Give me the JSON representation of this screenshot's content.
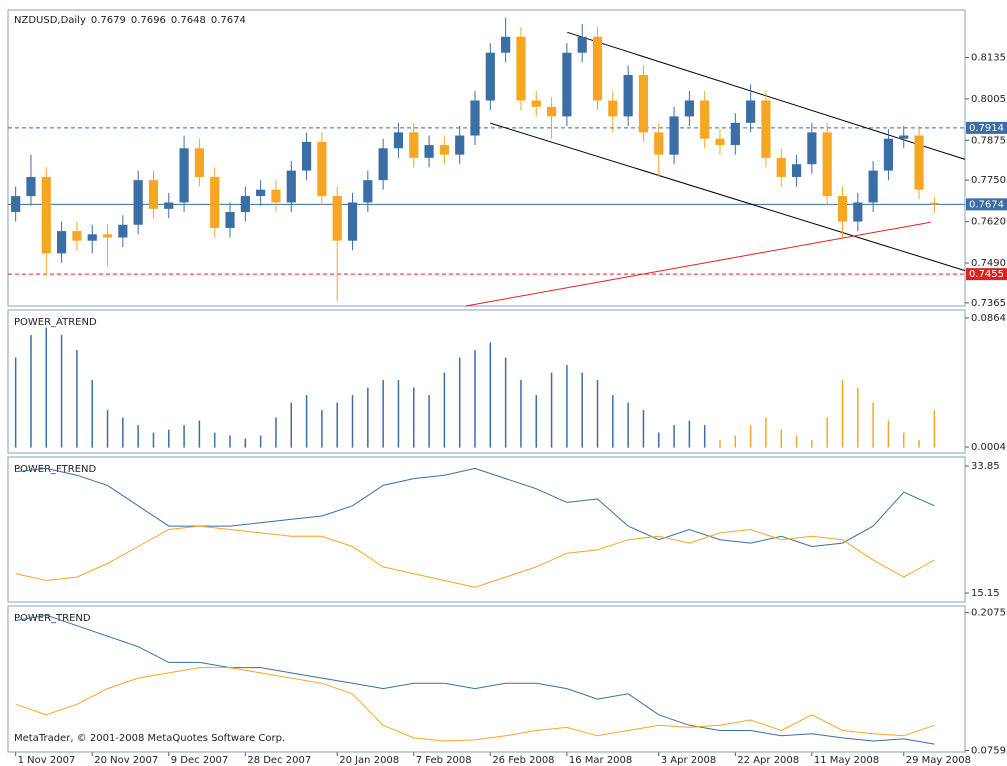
{
  "chart_data": [
    {
      "type": "candlestick",
      "title": "NZDUSD,Daily",
      "up_color": "#3a6ea5",
      "down_color": "#f5a623",
      "xlim": [
        -0.5,
        62
      ],
      "xticks": [
        {
          "value": 0,
          "label": "1 Nov 2007"
        },
        {
          "value": 5,
          "label": "20 Nov 2007"
        },
        {
          "value": 10,
          "label": "9 Dec 2007"
        },
        {
          "value": 15,
          "label": "28 Dec 2007"
        },
        {
          "value": 21,
          "label": "20 Jan 2008"
        },
        {
          "value": 26,
          "label": "7 Feb 2008"
        },
        {
          "value": 31,
          "label": "26 Feb 2008"
        },
        {
          "value": 36,
          "label": "16 Mar 2008"
        },
        {
          "value": 42,
          "label": "3 Apr 2008"
        },
        {
          "value": 47,
          "label": "22 Apr 2008"
        },
        {
          "value": 52,
          "label": "11 May 2008"
        },
        {
          "value": 58,
          "label": "29 May 2008"
        }
      ],
      "ylim": [
        0.7355,
        0.8284
      ],
      "yticks": [
        0.8135,
        0.8005,
        0.7875,
        {
          "value": 0.775,
          "label": "0.7750"
        },
        {
          "value": 0.762,
          "label": "0.7620"
        },
        {
          "value": 0.749,
          "label": "0.7490"
        },
        0.7365
      ],
      "open": [
        0.765,
        0.77,
        0.776,
        0.752,
        0.759,
        0.756,
        0.758,
        0.757,
        0.761,
        0.775,
        0.766,
        0.768,
        0.785,
        0.776,
        0.76,
        0.765,
        0.77,
        0.772,
        0.768,
        0.778,
        0.787,
        0.77,
        0.756,
        0.768,
        0.775,
        0.785,
        0.79,
        0.782,
        0.786,
        0.783,
        0.789,
        0.8,
        0.815,
        0.82,
        0.8,
        0.798,
        0.795,
        0.815,
        0.82,
        0.8,
        0.795,
        0.808,
        0.79,
        0.783,
        0.795,
        0.8,
        0.788,
        0.786,
        0.793,
        0.8,
        0.782,
        0.776,
        0.78,
        0.79,
        0.77,
        0.762,
        0.768,
        0.778,
        0.788,
        0.789,
        0.7679
      ],
      "high": [
        0.773,
        0.783,
        0.779,
        0.762,
        0.762,
        0.761,
        0.761,
        0.764,
        0.778,
        0.778,
        0.771,
        0.789,
        0.788,
        0.779,
        0.768,
        0.773,
        0.775,
        0.775,
        0.781,
        0.79,
        0.79,
        0.773,
        0.771,
        0.778,
        0.788,
        0.793,
        0.793,
        0.789,
        0.789,
        0.792,
        0.803,
        0.818,
        0.826,
        0.823,
        0.803,
        0.801,
        0.818,
        0.824,
        0.823,
        0.803,
        0.811,
        0.811,
        0.793,
        0.798,
        0.803,
        0.803,
        0.791,
        0.796,
        0.805,
        0.803,
        0.785,
        0.783,
        0.793,
        0.793,
        0.773,
        0.771,
        0.781,
        0.791,
        0.792,
        0.792,
        0.7696
      ],
      "low": [
        0.762,
        0.767,
        0.745,
        0.749,
        0.753,
        0.752,
        0.748,
        0.754,
        0.758,
        0.763,
        0.763,
        0.765,
        0.773,
        0.757,
        0.757,
        0.762,
        0.767,
        0.765,
        0.765,
        0.775,
        0.767,
        0.737,
        0.753,
        0.765,
        0.772,
        0.782,
        0.779,
        0.779,
        0.78,
        0.78,
        0.786,
        0.797,
        0.812,
        0.797,
        0.795,
        0.788,
        0.792,
        0.812,
        0.797,
        0.79,
        0.792,
        0.787,
        0.776,
        0.78,
        0.792,
        0.785,
        0.783,
        0.783,
        0.79,
        0.779,
        0.773,
        0.773,
        0.777,
        0.767,
        0.757,
        0.759,
        0.765,
        0.775,
        0.785,
        0.769,
        0.7648
      ],
      "close": [
        0.77,
        0.776,
        0.752,
        0.759,
        0.756,
        0.758,
        0.757,
        0.761,
        0.775,
        0.766,
        0.768,
        0.785,
        0.776,
        0.76,
        0.765,
        0.77,
        0.772,
        0.768,
        0.778,
        0.787,
        0.77,
        0.756,
        0.768,
        0.775,
        0.785,
        0.79,
        0.782,
        0.786,
        0.783,
        0.789,
        0.8,
        0.815,
        0.82,
        0.8,
        0.798,
        0.795,
        0.815,
        0.82,
        0.8,
        0.795,
        0.808,
        0.79,
        0.783,
        0.795,
        0.8,
        0.788,
        0.786,
        0.793,
        0.8,
        0.782,
        0.776,
        0.78,
        0.79,
        0.77,
        0.762,
        0.768,
        0.778,
        0.788,
        0.789,
        0.772,
        0.7674
      ],
      "hlines": [
        {
          "value": 0.7914,
          "color": "#3a6ea5",
          "style": "dashed"
        },
        {
          "value": 0.7674,
          "color": "#3a6ea5",
          "style": "solid"
        },
        {
          "value": 0.7455,
          "color": "#e02020",
          "style": "dashed"
        }
      ],
      "trendlines": [
        {
          "x": [
            36.03,
            62
          ],
          "y": [
            0.8214,
            0.7815
          ],
          "color": "#000000"
        },
        {
          "x": [
            31,
            62
          ],
          "y": [
            0.7929,
            0.7466
          ],
          "color": "#000000"
        },
        {
          "x": [
            29.4,
            59.76
          ],
          "y": [
            0.7355,
            0.7618
          ],
          "color": "#e02020"
        }
      ]
    },
    {
      "type": "histogram-bars",
      "title": "POWER_ATREND",
      "xlim": [
        -0.5,
        62
      ],
      "ylim": [
        -0.0036,
        0.0917
      ],
      "yticks": [
        0.0864,
        0.0004
      ],
      "series": [
        {
          "color": "#3a6ea5",
          "values": [
            0.06,
            0.075,
            0.08,
            0.075,
            0.065,
            0.045,
            0.025,
            0.02,
            0.015,
            0.01,
            0.012,
            0.015,
            0.018,
            0.01,
            0.008,
            0.006,
            0.008,
            0.02,
            0.03,
            0.035,
            0.025,
            0.03,
            0.035,
            0.04,
            0.045,
            0.045,
            0.04,
            0.035,
            0.05,
            0.06,
            0.065,
            0.07,
            0.06,
            0.045,
            0.035,
            0.05,
            0.055,
            0.05,
            0.045,
            0.035,
            0.03,
            0.025,
            0.01,
            0.015,
            0.018,
            0.015,
            null,
            null,
            null,
            null,
            null,
            null,
            null,
            null,
            null,
            null,
            null,
            null,
            null,
            null,
            null
          ]
        },
        {
          "color": "#f5a623",
          "values": [
            null,
            null,
            null,
            null,
            null,
            null,
            null,
            null,
            null,
            null,
            null,
            null,
            null,
            null,
            null,
            null,
            null,
            null,
            null,
            null,
            null,
            null,
            null,
            null,
            null,
            null,
            null,
            null,
            null,
            null,
            null,
            null,
            null,
            null,
            null,
            null,
            null,
            null,
            null,
            null,
            null,
            null,
            null,
            null,
            null,
            null,
            0.005,
            0.008,
            0.015,
            0.02,
            0.012,
            0.008,
            0.005,
            0.02,
            0.045,
            0.04,
            0.03,
            0.018,
            0.01,
            0.005,
            0.025
          ]
        }
      ]
    },
    {
      "type": "line",
      "title": "POWER_FTREND",
      "xlim": [
        -0.5,
        62
      ],
      "ylim": [
        13.83,
        35.18
      ],
      "yticks": [
        33.85,
        15.15
      ],
      "x": [
        0,
        2,
        4,
        6,
        8,
        10,
        12,
        14,
        16,
        18,
        20,
        22,
        24,
        26,
        28,
        30,
        32,
        34,
        36,
        38,
        40,
        42,
        44,
        46,
        48,
        50,
        52,
        54,
        56,
        58,
        60
      ],
      "series": [
        {
          "color": "#3a6ea5",
          "values": [
            33.0,
            33.5,
            32.5,
            31.0,
            28.0,
            25.0,
            25.0,
            25.0,
            25.5,
            26.0,
            26.5,
            28.0,
            31.0,
            32.0,
            32.5,
            33.5,
            32.0,
            30.5,
            28.5,
            29.0,
            25.0,
            23.0,
            24.5,
            23.0,
            22.5,
            23.5,
            22.0,
            22.5,
            25.0,
            30.0,
            28.0
          ]
        },
        {
          "color": "#f5a623",
          "values": [
            18.0,
            17.0,
            17.5,
            19.5,
            22.0,
            24.5,
            25.0,
            24.5,
            24.0,
            23.5,
            23.5,
            22.0,
            19.0,
            18.0,
            17.0,
            16.0,
            17.5,
            19.0,
            21.0,
            21.5,
            23.0,
            23.5,
            22.5,
            24.0,
            24.5,
            23.0,
            23.5,
            23.0,
            20.0,
            17.5,
            20.0
          ]
        }
      ]
    },
    {
      "type": "line",
      "title": "POWER_TREND",
      "footer": "MetaTrader, © 2001-2008 MetaQuotes Software Corp.",
      "xlim": [
        -0.5,
        62
      ],
      "ylim": [
        0.0745,
        0.2138
      ],
      "yticks": [
        0.2075,
        0.0759
      ],
      "x": [
        0,
        2,
        4,
        6,
        8,
        10,
        12,
        14,
        16,
        18,
        20,
        22,
        24,
        26,
        28,
        30,
        32,
        34,
        36,
        38,
        40,
        42,
        44,
        46,
        48,
        50,
        52,
        54,
        56,
        58,
        60
      ],
      "series": [
        {
          "color": "#3a6ea5",
          "values": [
            0.2,
            0.205,
            0.195,
            0.185,
            0.175,
            0.16,
            0.16,
            0.155,
            0.155,
            0.15,
            0.145,
            0.14,
            0.135,
            0.14,
            0.14,
            0.135,
            0.14,
            0.14,
            0.135,
            0.125,
            0.13,
            0.11,
            0.1,
            0.095,
            0.095,
            0.09,
            0.092,
            0.088,
            0.085,
            0.087,
            0.082
          ]
        },
        {
          "color": "#f5a623",
          "values": [
            0.12,
            0.11,
            0.12,
            0.135,
            0.145,
            0.15,
            0.155,
            0.155,
            0.15,
            0.145,
            0.14,
            0.13,
            0.1,
            0.088,
            0.085,
            0.086,
            0.09,
            0.095,
            0.098,
            0.09,
            0.095,
            0.1,
            0.098,
            0.1,
            0.105,
            0.095,
            0.11,
            0.095,
            0.092,
            0.09,
            0.1
          ]
        }
      ]
    }
  ]
}
